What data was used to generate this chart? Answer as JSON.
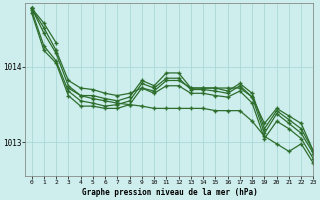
{
  "title": "Graphe pression niveau de la mer (hPa)",
  "bg_color": "#ceeeed",
  "grid_color": "#aad8d8",
  "line_color": "#2d6e2d",
  "xlim": [
    -0.5,
    23
  ],
  "ylim": [
    1012.55,
    1014.85
  ],
  "yticks": [
    1013,
    1014
  ],
  "xticks": [
    0,
    1,
    2,
    3,
    4,
    5,
    6,
    7,
    8,
    9,
    10,
    11,
    12,
    13,
    14,
    15,
    16,
    17,
    18,
    19,
    20,
    21,
    22,
    23
  ],
  "series": [
    [
      1014.78,
      1014.58,
      1014.32,
      null,
      null,
      null,
      null,
      null,
      null,
      null,
      null,
      null,
      null,
      null,
      null,
      null,
      null,
      null,
      null,
      null,
      null,
      null,
      null,
      null
    ],
    [
      1014.78,
      1014.52,
      1014.22,
      1013.82,
      1013.72,
      1013.7,
      1013.65,
      1013.62,
      1013.65,
      1013.72,
      1013.68,
      1013.82,
      1013.82,
      1013.72,
      1013.72,
      1013.72,
      1013.72,
      1013.72,
      1013.6,
      1013.25,
      1013.45,
      1013.35,
      1013.25,
      1012.88
    ],
    [
      1014.78,
      1014.45,
      1014.18,
      1013.75,
      1013.62,
      1013.62,
      1013.58,
      1013.55,
      1013.6,
      1013.82,
      1013.75,
      1013.92,
      1013.92,
      1013.72,
      1013.72,
      1013.72,
      1013.68,
      1013.78,
      1013.65,
      1013.18,
      1013.42,
      1013.3,
      1013.18,
      1012.88
    ],
    [
      1014.75,
      1014.28,
      1014.08,
      1013.68,
      1013.55,
      1013.52,
      1013.48,
      1013.5,
      1013.55,
      1013.78,
      1013.72,
      1013.85,
      1013.85,
      1013.7,
      1013.7,
      1013.68,
      1013.65,
      1013.75,
      1013.6,
      1013.12,
      1013.38,
      1013.25,
      1013.12,
      1012.85
    ],
    [
      1014.72,
      1014.22,
      1014.05,
      1013.62,
      1013.48,
      1013.48,
      1013.45,
      1013.45,
      1013.5,
      1013.72,
      1013.65,
      1013.75,
      1013.75,
      1013.65,
      1013.65,
      1013.62,
      1013.6,
      1013.68,
      1013.52,
      1013.05,
      1013.28,
      1013.18,
      1013.05,
      1012.78
    ]
  ],
  "series2": [
    [
      null,
      null,
      null,
      1013.72,
      1013.62,
      1013.58,
      1013.55,
      1013.52,
      1013.5,
      1013.48,
      1013.45,
      1013.45,
      1013.45,
      1013.45,
      1013.45,
      1013.42,
      1013.42,
      1013.42,
      1013.28,
      1013.08,
      1012.98,
      1012.88,
      1012.98,
      1012.72
    ]
  ]
}
